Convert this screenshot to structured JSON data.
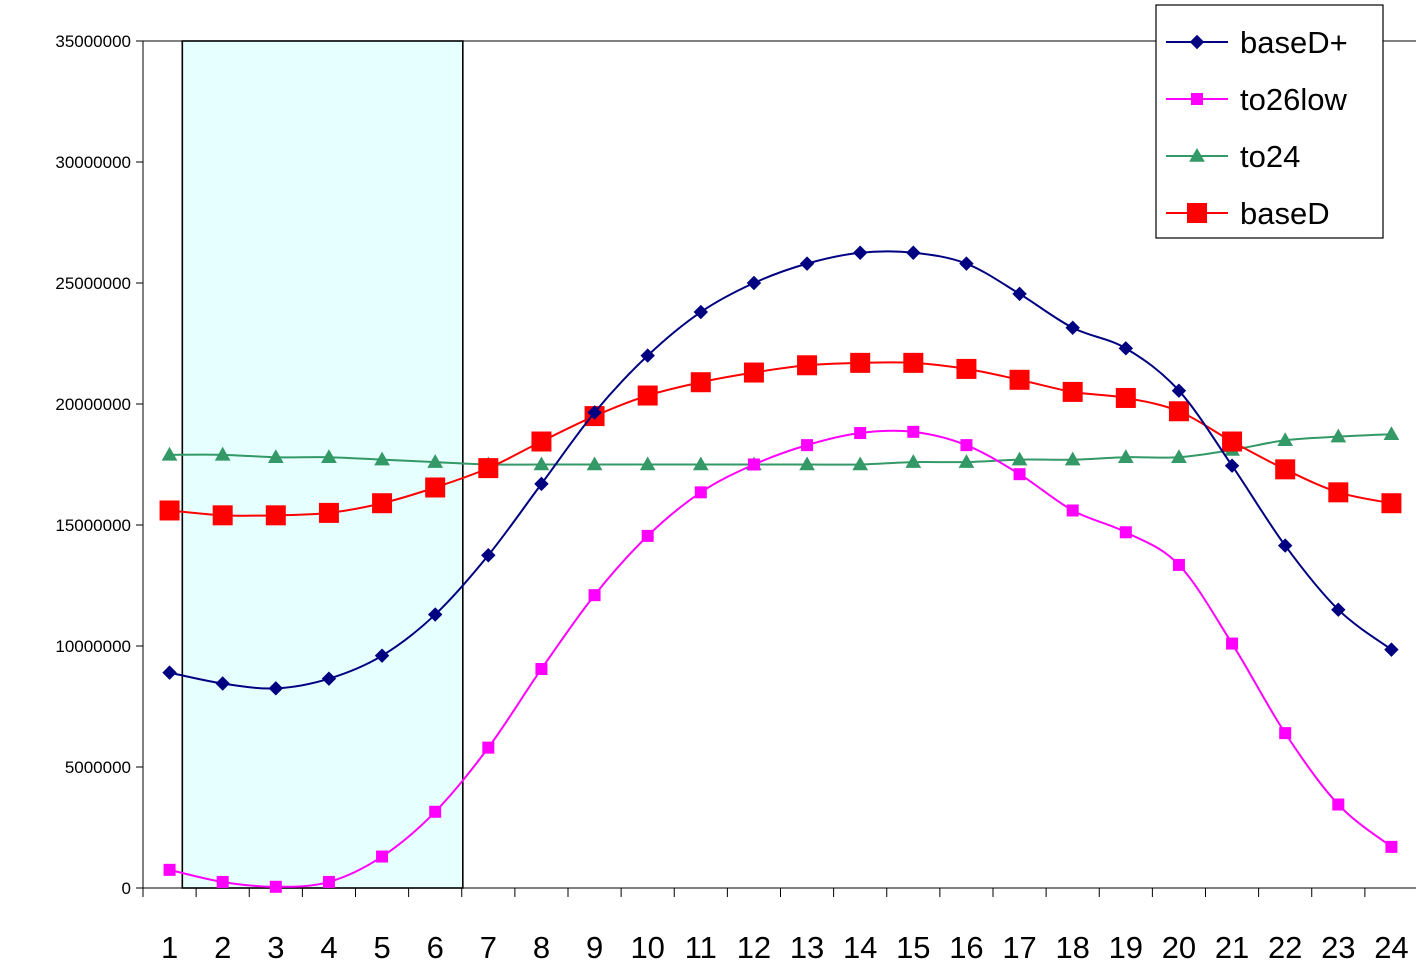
{
  "chart_data": {
    "type": "line",
    "title": "",
    "xlabel": "",
    "ylabel": "",
    "ylim": [
      0,
      35000000
    ],
    "y_ticks": [
      "0",
      "5000000",
      "10000000",
      "15000000",
      "20000000",
      "25000000",
      "30000000",
      "35000000"
    ],
    "categories": [
      "1",
      "2",
      "3",
      "4",
      "5",
      "6",
      "7",
      "8",
      "9",
      "10",
      "11",
      "12",
      "13",
      "14",
      "15",
      "16",
      "17",
      "18",
      "19",
      "20",
      "21",
      "22",
      "23",
      "24"
    ],
    "highlight_band": {
      "from_category": "1",
      "to_category": "6",
      "fill": "#e6ffff"
    },
    "grid": "horizontal line at top only",
    "legend_position": "top-right",
    "series": [
      {
        "name": "baseD+",
        "color": "#000080",
        "marker": "diamond",
        "values": [
          8900000,
          8450000,
          8250000,
          8650000,
          9600000,
          11300000,
          13750000,
          16700000,
          19650000,
          22000000,
          23800000,
          25000000,
          25800000,
          26250000,
          26250000,
          25800000,
          24550000,
          23150000,
          22300000,
          20550000,
          17450000,
          14150000,
          11500000,
          9850000
        ]
      },
      {
        "name": "to26low",
        "color": "#ff00ff",
        "marker": "square",
        "values": [
          750000,
          250000,
          50000,
          250000,
          1300000,
          3150000,
          5800000,
          9050000,
          12100000,
          14550000,
          16350000,
          17500000,
          18300000,
          18800000,
          18850000,
          18300000,
          17100000,
          15600000,
          14700000,
          13350000,
          10100000,
          6400000,
          3450000,
          1700000
        ]
      },
      {
        "name": "to24",
        "color": "#339966",
        "marker": "triangle",
        "values": [
          17900000,
          17900000,
          17800000,
          17800000,
          17700000,
          17600000,
          17500000,
          17500000,
          17500000,
          17500000,
          17500000,
          17500000,
          17500000,
          17500000,
          17600000,
          17600000,
          17700000,
          17700000,
          17800000,
          17800000,
          18100000,
          18500000,
          18650000,
          18750000
        ]
      },
      {
        "name": "baseD",
        "color": "#ff0000",
        "marker": "square-large",
        "values": [
          15600000,
          15400000,
          15400000,
          15500000,
          15900000,
          16550000,
          17350000,
          18450000,
          19500000,
          20350000,
          20900000,
          21300000,
          21600000,
          21700000,
          21700000,
          21450000,
          21000000,
          20500000,
          20250000,
          19700000,
          18450000,
          17300000,
          16350000,
          15900000
        ]
      }
    ]
  }
}
